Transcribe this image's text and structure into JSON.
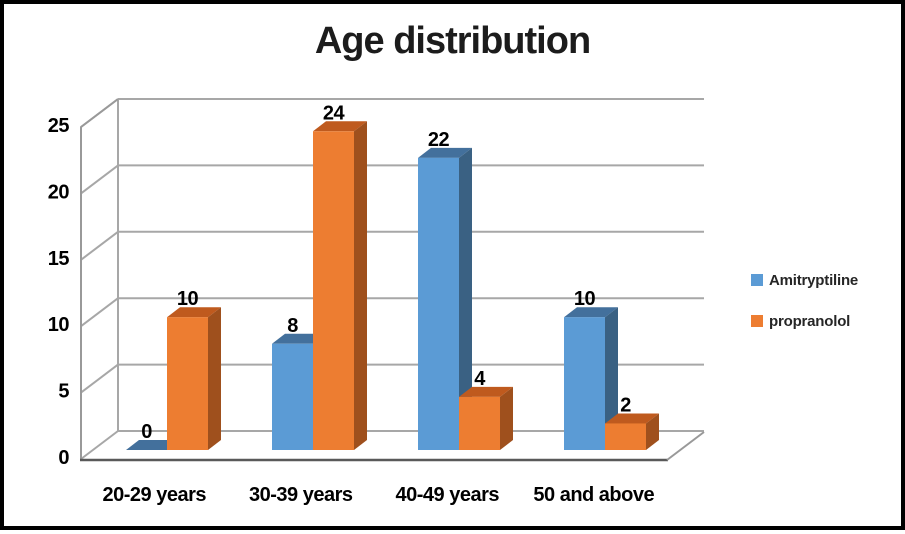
{
  "frame": {
    "background": "#FFFFFF",
    "border_color": "#000000"
  },
  "chart_data": {
    "type": "bar",
    "style": "3d-clustered-column",
    "title": "Age distribution",
    "categories": [
      "20-29 years",
      "30-39 years",
      "40-49 years",
      "50 and above"
    ],
    "series": [
      {
        "name": "Amitryptiline",
        "values": [
          0,
          8,
          22,
          10
        ],
        "color": "#5B9BD5",
        "color_top": "#43709C",
        "color_side": "#3A6183"
      },
      {
        "name": "propranolol",
        "values": [
          10,
          24,
          4,
          2
        ],
        "color": "#ED7D31",
        "color_top": "#BF5A1E",
        "color_side": "#9F501D"
      }
    ],
    "ylim": [
      0,
      25
    ],
    "y_ticks": [
      0,
      5,
      10,
      15,
      20,
      25
    ],
    "grid": true,
    "gridline_color": "#A7A7A7",
    "axis_color": "#999999",
    "baseline_color": "#595959",
    "text_color": "#000000",
    "data_labels": true,
    "legend_position": "right"
  }
}
